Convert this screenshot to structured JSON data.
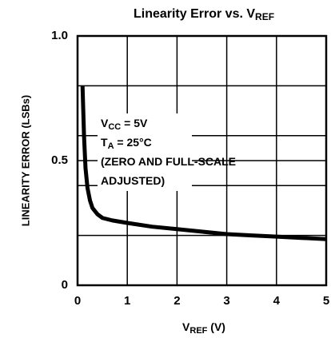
{
  "chart_data": {
    "type": "line",
    "title": {
      "text": "Linearity Error vs. V",
      "subscript": "REF"
    },
    "xlabel": {
      "text": "V",
      "subscript": "REF",
      "rest": " (V)"
    },
    "ylabel": "LINEARITY ERROR (LSBs)",
    "annotations": [
      {
        "text": "V",
        "subscript": "CC",
        "rest": " = 5V"
      },
      {
        "text": "T",
        "subscript": "A",
        "rest": " = 25°C"
      },
      {
        "text": "(ZERO AND FULL-SCALE"
      },
      {
        "text": "ADJUSTED)"
      }
    ],
    "x": [
      0.1,
      0.13,
      0.16,
      0.2,
      0.25,
      0.3,
      0.4,
      0.5,
      0.7,
      1,
      1.5,
      2,
      2.5,
      3,
      3.5,
      4,
      4.5,
      5
    ],
    "series": [
      {
        "name": "Linearity Error",
        "color": "#000000",
        "values": [
          0.8,
          0.6,
          0.47,
          0.39,
          0.34,
          0.31,
          0.285,
          0.27,
          0.26,
          0.25,
          0.235,
          0.225,
          0.215,
          0.205,
          0.2,
          0.195,
          0.19,
          0.185
        ]
      }
    ],
    "xlim": [
      0,
      5
    ],
    "xticks": [
      0,
      1,
      2,
      3,
      4,
      5
    ],
    "ylim": [
      0,
      1
    ],
    "yticks": [
      0,
      0.5,
      {
        "value": 1,
        "label": "1.0"
      }
    ],
    "ygrid": [
      0.2,
      0.4,
      0.6,
      0.8
    ],
    "grid": true
  }
}
